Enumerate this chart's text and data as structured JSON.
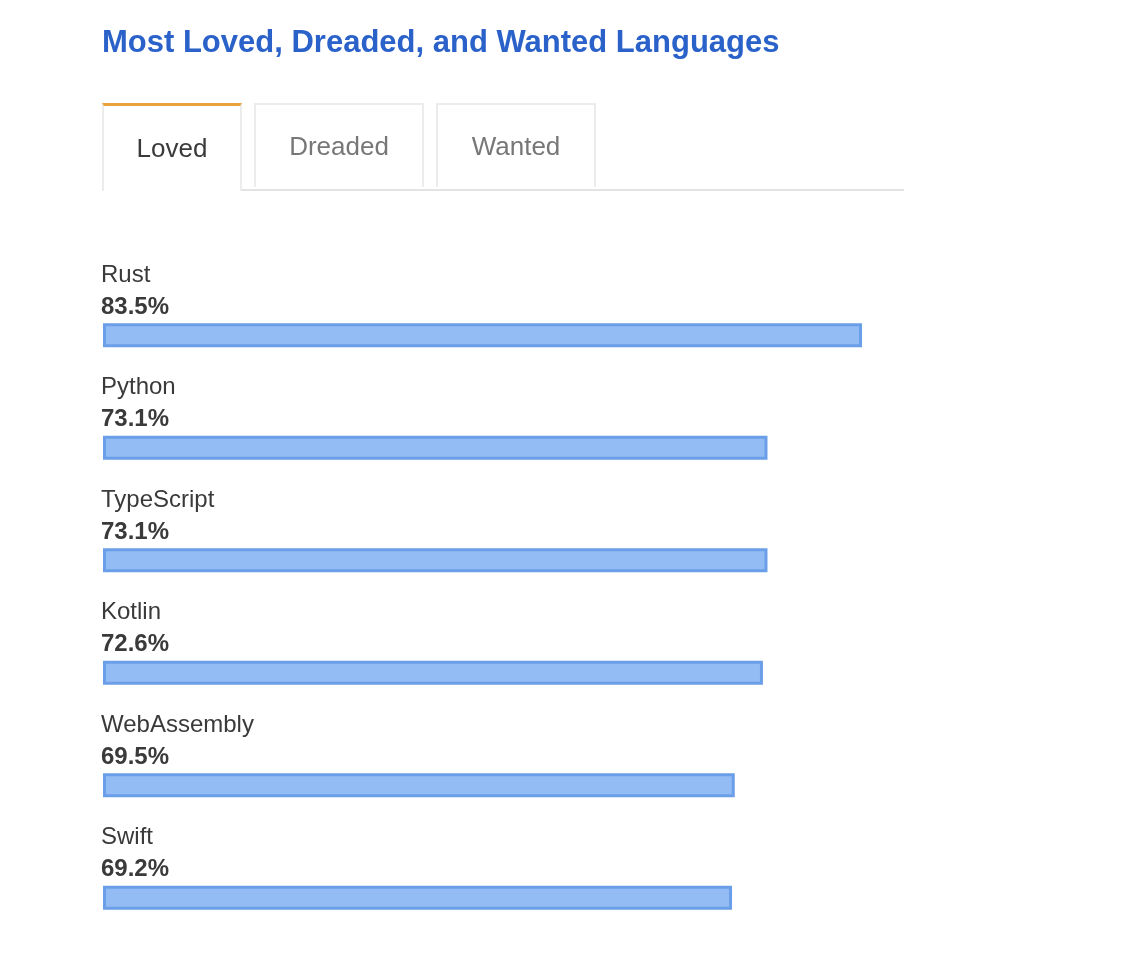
{
  "chart_data": {
    "type": "bar",
    "orientation": "horizontal",
    "title": "Most Loved, Dreaded, and Wanted Languages",
    "annotations": [
      "Loved",
      "Dreaded",
      "Wanted"
    ],
    "categories": [
      "Rust",
      "Python",
      "TypeScript",
      "Kotlin",
      "WebAssembly",
      "Swift"
    ],
    "values": [
      83.5,
      73.1,
      73.1,
      72.6,
      69.5,
      69.2
    ],
    "value_labels": [
      "83.5%",
      "73.1%",
      "73.1%",
      "72.6%",
      "69.5%",
      "69.2%"
    ],
    "color": "#94bcf4",
    "tick_labels": false
  }
}
